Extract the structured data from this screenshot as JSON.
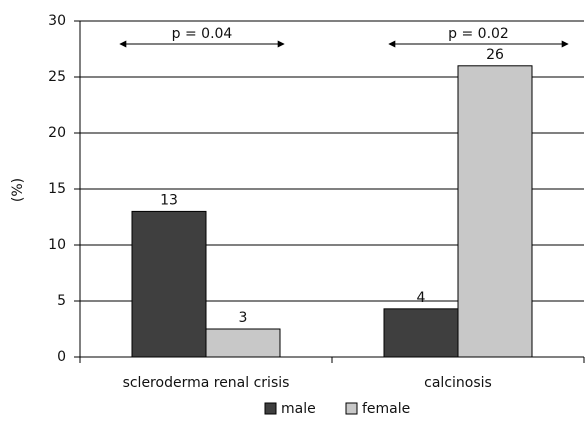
{
  "chart_data": {
    "type": "bar",
    "y_label": "(%)",
    "categories": [
      "scleroderma renal crisis",
      "calcinosis"
    ],
    "series": [
      {
        "name": "male",
        "color": "#3f3f3f",
        "values": [
          13,
          4.3
        ],
        "value_labels": [
          "13",
          "4"
        ]
      },
      {
        "name": "female",
        "color": "#c8c8c8",
        "values": [
          2.5,
          26
        ],
        "value_labels": [
          "3",
          "26"
        ]
      }
    ],
    "annotations": [
      "p = 0.04",
      "p = 0.02"
    ],
    "ylim": [
      0,
      30
    ],
    "yticks": [
      0,
      5,
      10,
      15,
      20,
      25,
      30
    ],
    "grid": true,
    "legend": "bottom"
  }
}
